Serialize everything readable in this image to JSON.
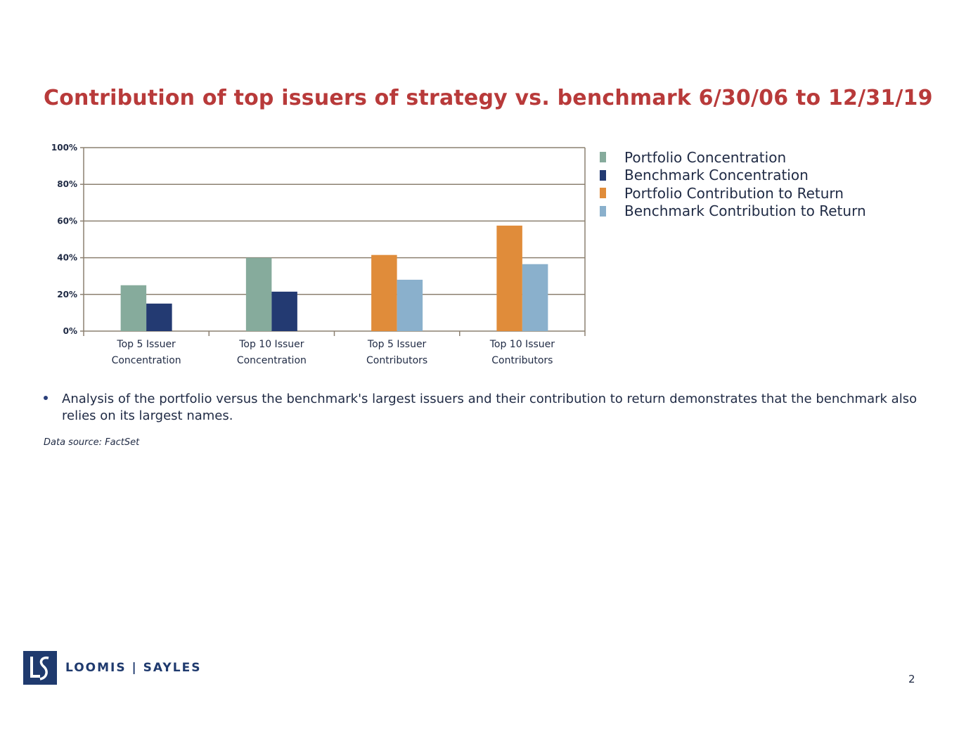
{
  "title": "Contribution of top issuers of strategy vs. benchmark 6/30/06 to 12/31/19",
  "chart_data": {
    "type": "bar",
    "categories": [
      [
        "Top 5 Issuer",
        "Concentration"
      ],
      [
        "Top 10 Issuer",
        "Concentration"
      ],
      [
        "Top 5 Issuer",
        "Contributors"
      ],
      [
        "Top 10 Issuer",
        "Contributors"
      ]
    ],
    "series": [
      {
        "name": "Portfolio Concentration",
        "color": "#86ab9c",
        "values": [
          25,
          40,
          null,
          null
        ]
      },
      {
        "name": "Benchmark Concentration",
        "color": "#233a72",
        "values": [
          15,
          21.5,
          null,
          null
        ]
      },
      {
        "name": "Portfolio Contribution to Return",
        "color": "#e08c3a",
        "values": [
          null,
          null,
          41.5,
          57.5
        ]
      },
      {
        "name": "Benchmark Contribution to Return",
        "color": "#8ab0cc",
        "values": [
          null,
          null,
          28,
          36.5
        ]
      }
    ],
    "ylim": [
      0,
      100
    ],
    "yticks": [
      0,
      20,
      40,
      60,
      80,
      100
    ],
    "ytick_labels": [
      "0%",
      "20%",
      "40%",
      "60%",
      "80%",
      "100%"
    ],
    "grid": true,
    "legend_position": "right"
  },
  "bullet": "Analysis of the portfolio versus the benchmark's largest issuers and their contribution to return demonstrates that the benchmark also relies on its largest names.",
  "source": "Data source: FactSet",
  "logo": {
    "text": "LOOMIS | SAYLES",
    "mark": "LS"
  },
  "page_number": "2"
}
